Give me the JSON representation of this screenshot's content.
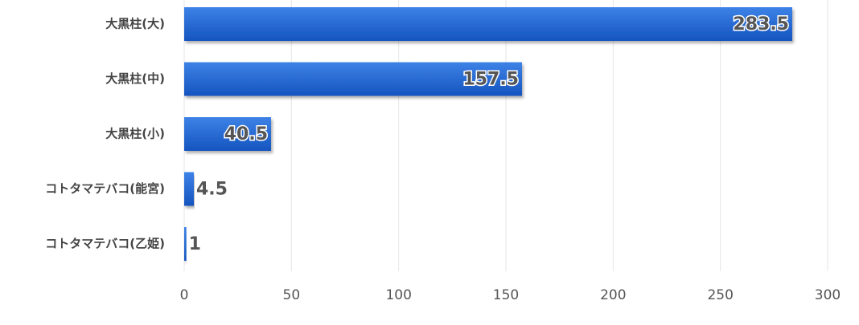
{
  "chart_data": {
    "type": "bar",
    "orientation": "horizontal",
    "categories": [
      "大黒柱(大)",
      "大黒柱(中)",
      "大黒柱(小)",
      "コトタマテバコ(能宮)",
      "コトタマテバコ(乙姫)"
    ],
    "values": [
      283.5,
      157.5,
      40.5,
      4.5,
      1
    ],
    "color": "#1f66cc",
    "xlim": [
      0,
      300
    ],
    "xticks": [
      0,
      50,
      100,
      150,
      200,
      250,
      300
    ],
    "grid": true
  }
}
